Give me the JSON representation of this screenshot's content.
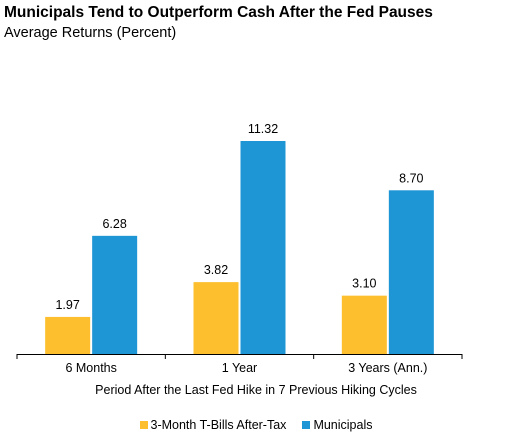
{
  "colors": {
    "tbills": "#FDBF2D",
    "municipals": "#1E95D4",
    "axis": "#000000"
  },
  "chart_data": {
    "type": "bar",
    "title": "Municipals Tend to Outperform Cash After the Fed Pauses",
    "subtitle": "Average Returns (Percent)",
    "xlabel": "Period After the Last Fed Hike in 7 Previous Hiking Cycles",
    "ylabel": "",
    "categories": [
      "6 Months",
      "1 Year",
      "3 Years (Ann.)"
    ],
    "series": [
      {
        "name": "3-Month T-Bills After-Tax",
        "values": [
          1.97,
          3.82,
          3.1
        ],
        "labels": [
          "1.97",
          "3.82",
          "3.10"
        ]
      },
      {
        "name": "Municipals",
        "values": [
          6.28,
          11.32,
          8.7
        ],
        "labels": [
          "6.28",
          "11.32",
          "8.70"
        ]
      }
    ],
    "ylim": [
      0,
      11.32
    ],
    "grid": false,
    "legend_position": "bottom"
  }
}
